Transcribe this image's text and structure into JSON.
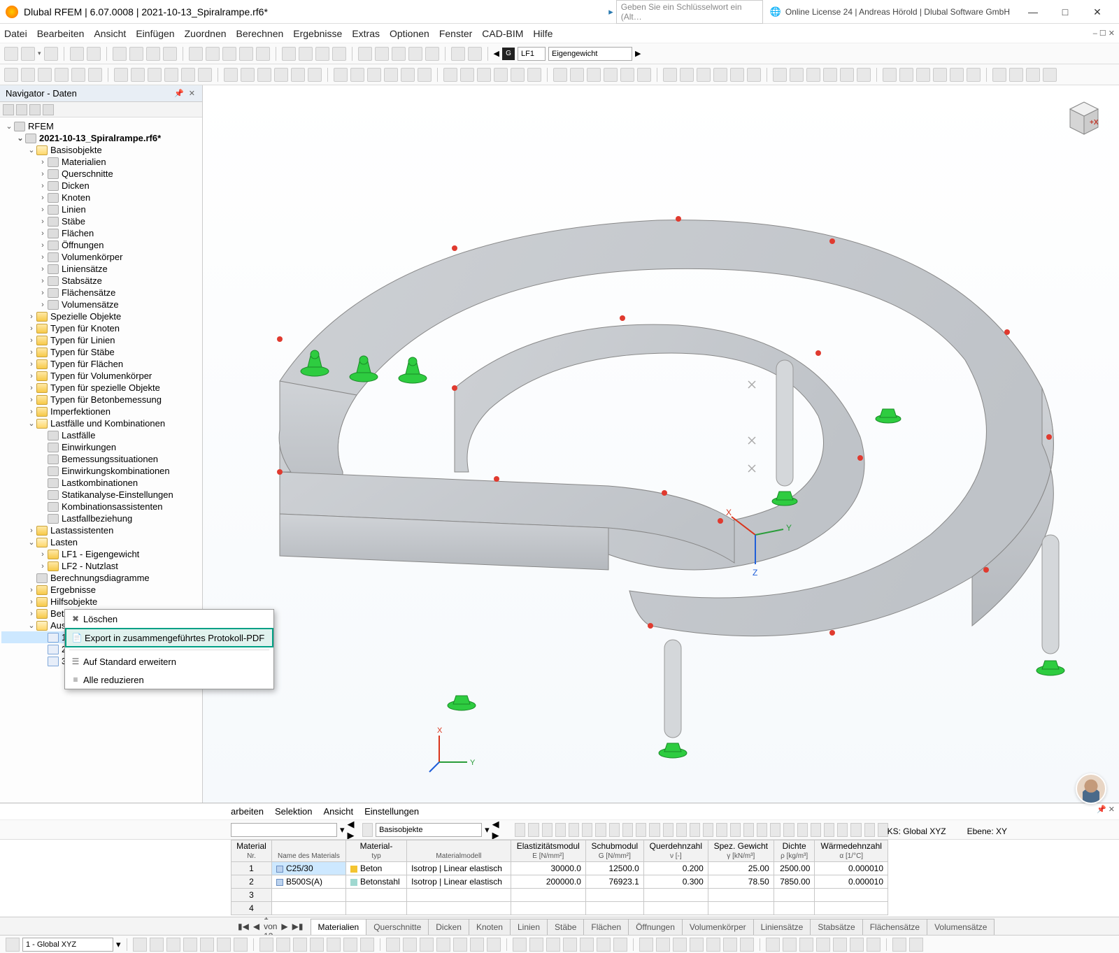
{
  "titlebar": {
    "title": "Dlubal RFEM | 6.07.0008 | 2021-10-13_Spiralrampe.rf6*",
    "keyword_placeholder": "Geben Sie ein Schlüsselwort ein (Alt…",
    "license": "Online License 24 | Andreas Hörold | Dlubal Software GmbH"
  },
  "menubar": [
    "Datei",
    "Bearbeiten",
    "Ansicht",
    "Einfügen",
    "Zuordnen",
    "Berechnen",
    "Ergebnisse",
    "Extras",
    "Optionen",
    "Fenster",
    "CAD-BIM",
    "Hilfe"
  ],
  "toolbar1": {
    "lf_label": "LF1",
    "lf_name": "Eigengewicht"
  },
  "navigator": {
    "title": "Navigator - Daten",
    "root": "RFEM",
    "file": "2021-10-13_Spiralrampe.rf6*",
    "basis": {
      "label": "Basisobjekte",
      "children": [
        "Materialien",
        "Querschnitte",
        "Dicken",
        "Knoten",
        "Linien",
        "Stäbe",
        "Flächen",
        "Öffnungen",
        "Volumenkörper",
        "Liniensätze",
        "Stabsätze",
        "Flächensätze",
        "Volumensätze"
      ]
    },
    "typen": [
      "Spezielle Objekte",
      "Typen für Knoten",
      "Typen für Linien",
      "Typen für Stäbe",
      "Typen für Flächen",
      "Typen für Volumenkörper",
      "Typen für spezielle Objekte",
      "Typen für Betonbemessung",
      "Imperfektionen"
    ],
    "lastfaelle": {
      "label": "Lastfälle und Kombinationen",
      "children": [
        "Lastfälle",
        "Einwirkungen",
        "Bemessungssituationen",
        "Einwirkungskombinationen",
        "Lastkombinationen",
        "Statikanalyse-Einstellungen",
        "Kombinationsassistenten",
        "Lastfallbeziehung"
      ]
    },
    "rest": [
      "Lastassistenten"
    ],
    "lasten": {
      "label": "Lasten",
      "children": [
        "LF1 - Eigengewicht",
        "LF2 - Nutzlast"
      ]
    },
    "rest2": [
      "Berechnungsdiagramme",
      "Ergebnisse",
      "Hilfsobjekte",
      "Betonbemessung"
    ],
    "ausdruck": {
      "label": "Ausdruckprotokolle",
      "children": [
        "1",
        "2",
        "3"
      ]
    }
  },
  "context_menu": {
    "delete": "Löschen",
    "export": "Export in zusammengeführtes Protokoll-PDF",
    "expand": "Auf Standard erweitern",
    "collapse": "Alle reduzieren"
  },
  "bottom": {
    "menubar": [
      "arbeiten",
      "Selektion",
      "Ansicht",
      "Einstellungen"
    ],
    "drop1": "",
    "drop2": "Basisobjekte",
    "table": {
      "headers": [
        {
          "l1": "Material",
          "l2": "Nr."
        },
        {
          "l1": "",
          "l2": "Name des Materials"
        },
        {
          "l1": "Material-",
          "l2": "typ"
        },
        {
          "l1": "",
          "l2": "Materialmodell"
        },
        {
          "l1": "Elastizitätsmodul",
          "l2": "E [N/mm²]"
        },
        {
          "l1": "Schubmodul",
          "l2": "G [N/mm²]"
        },
        {
          "l1": "Querdehnzahl",
          "l2": "ν [-]"
        },
        {
          "l1": "Spez. Gewicht",
          "l2": "γ [kN/m³]"
        },
        {
          "l1": "Dichte",
          "l2": "ρ [kg/m³]"
        },
        {
          "l1": "Wärmedehnzahl",
          "l2": "α [1/°C]"
        }
      ],
      "rows": [
        {
          "nr": "1",
          "name": "C25/30",
          "typ": "Beton",
          "typ_color": "#f4c430",
          "modell": "Isotrop | Linear elastisch",
          "e": "30000.0",
          "g": "12500.0",
          "v": "0.200",
          "gamma": "25.00",
          "rho": "2500.00",
          "alpha": "0.000010",
          "sel": true
        },
        {
          "nr": "2",
          "name": "B500S(A)",
          "typ": "Betonstahl",
          "typ_color": "#9fd8d0",
          "modell": "Isotrop | Linear elastisch",
          "e": "200000.0",
          "g": "76923.1",
          "v": "0.300",
          "gamma": "78.50",
          "rho": "7850.00",
          "alpha": "0.000010",
          "sel": false
        },
        {
          "nr": "3"
        },
        {
          "nr": "4"
        }
      ]
    },
    "pager": "1 von 13",
    "tabs": [
      "Materialien",
      "Querschnitte",
      "Dicken",
      "Knoten",
      "Linien",
      "Stäbe",
      "Flächen",
      "Öffnungen",
      "Volumenkörper",
      "Liniensätze",
      "Stabsätze",
      "Flächensätze",
      "Volumensätze"
    ]
  },
  "bottom_toolbar": {
    "coord": "1 - Global XYZ"
  },
  "statusbar": {
    "ks": "KS: Global XYZ",
    "ebene": "Ebene: XY"
  },
  "colors": {
    "ramp": "#c2c5c9",
    "ramp_dark": "#a9adb2",
    "column": "#cfd2d5",
    "support_green": "#2ecc40",
    "node_red": "#e03a2f",
    "axis_x": "#d9341c",
    "axis_y": "#2a9d3a",
    "axis_z": "#1f5fd9",
    "highlight": "#00a085",
    "selection": "#cde8ff"
  }
}
